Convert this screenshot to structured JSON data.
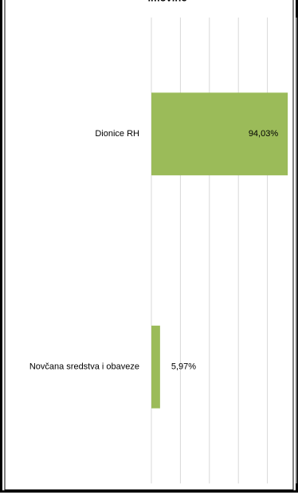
{
  "chart_data": {
    "type": "barh",
    "title": "imovine",
    "categories": [
      "Dionice RH",
      "Novčana sredstva i obaveze"
    ],
    "values": [
      94.03,
      5.97
    ],
    "value_labels": [
      "94,03%",
      "5,97%"
    ],
    "color": "#9bbb59",
    "xlim": [
      0,
      100
    ],
    "xticks": [
      0,
      20,
      40,
      60,
      80,
      100
    ],
    "grid": true
  }
}
